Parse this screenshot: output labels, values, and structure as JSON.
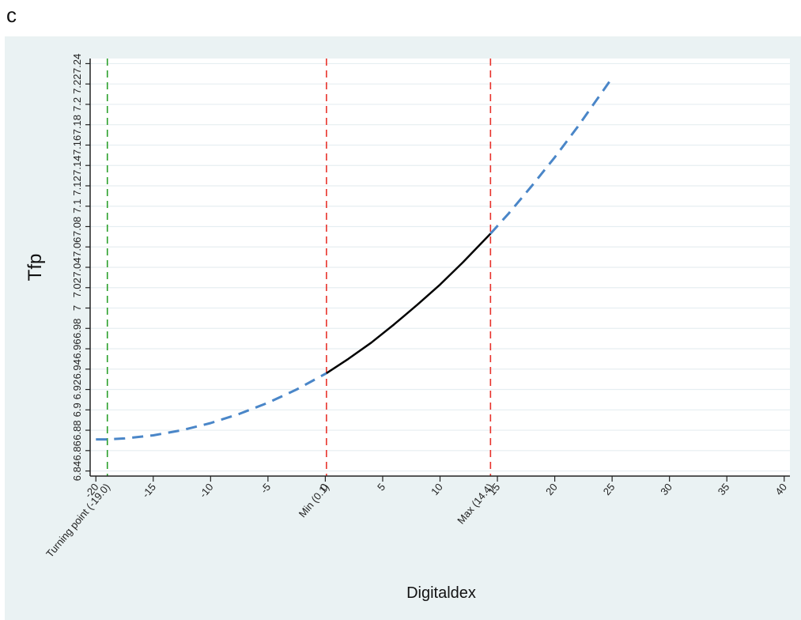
{
  "panel_label": "c",
  "colors": {
    "background": "#eaf2f3",
    "plot_background": "#ffffff",
    "gridline": "#e6eef1",
    "observed_curve": "#000000",
    "extrapolated_curve": "#4a86c8",
    "turning_point_line": "#2ca02c",
    "range_line": "#e8322b"
  },
  "chart_data": {
    "type": "line",
    "title": "",
    "xlabel": "Digitaldex",
    "ylabel": "Tfp",
    "xlim": [
      -20.5,
      40.5
    ],
    "ylim": [
      6.835,
      7.245
    ],
    "grid": "horizontal",
    "x_ticks": [
      -20,
      -15,
      -10,
      -5,
      0,
      5,
      10,
      15,
      20,
      25,
      30,
      35,
      40
    ],
    "x_tick_labels": [
      "-20",
      "-15",
      "-10",
      "-5",
      "0",
      "5",
      "10",
      "15",
      "20",
      "25",
      "30",
      "35",
      "40"
    ],
    "y_ticks": [
      6.84,
      6.86,
      6.88,
      6.9,
      6.92,
      6.94,
      6.96,
      6.98,
      7,
      7.02,
      7.04,
      7.06,
      7.08,
      7.1,
      7.12,
      7.14,
      7.16,
      7.18,
      7.2,
      7.22,
      7.24
    ],
    "y_tick_labels": [
      "6.84",
      "6.86",
      "6.88",
      "6.9",
      "6.92",
      "6.94",
      "6.96",
      "6.98",
      "7",
      "7.02",
      "7.04",
      "7.06",
      "7.08",
      "7.1",
      "7.12",
      "7.14",
      "7.16",
      "7.18",
      "7.2",
      "7.22",
      "7.24"
    ],
    "series": [
      {
        "style": "dashed",
        "x": [
          -20,
          -19,
          -17.5,
          -15,
          -12.5,
          -10,
          -7.5,
          -5,
          -2.5,
          0.1
        ],
        "y": [
          6.871,
          6.871,
          6.872,
          6.875,
          6.88,
          6.887,
          6.896,
          6.907,
          6.92,
          6.936
        ]
      },
      {
        "style": "solid",
        "x": [
          0.1,
          2,
          4,
          6,
          8,
          10,
          12,
          14.4
        ],
        "y": [
          6.936,
          6.95,
          6.966,
          6.984,
          7.003,
          7.023,
          7.045,
          7.073
        ]
      },
      {
        "style": "dashed",
        "x": [
          14.4,
          16,
          18,
          20,
          22,
          24,
          25
        ],
        "y": [
          7.073,
          7.093,
          7.12,
          7.148,
          7.178,
          7.21,
          7.226
        ]
      }
    ],
    "reference_lines": [
      {
        "x": -19.0,
        "label": "Turning point (-19.0)",
        "color": "green"
      },
      {
        "x": 0.1,
        "label": "Min (0.1)",
        "color": "red"
      },
      {
        "x": 14.4,
        "label": "Max (14.4)",
        "color": "red"
      }
    ]
  }
}
